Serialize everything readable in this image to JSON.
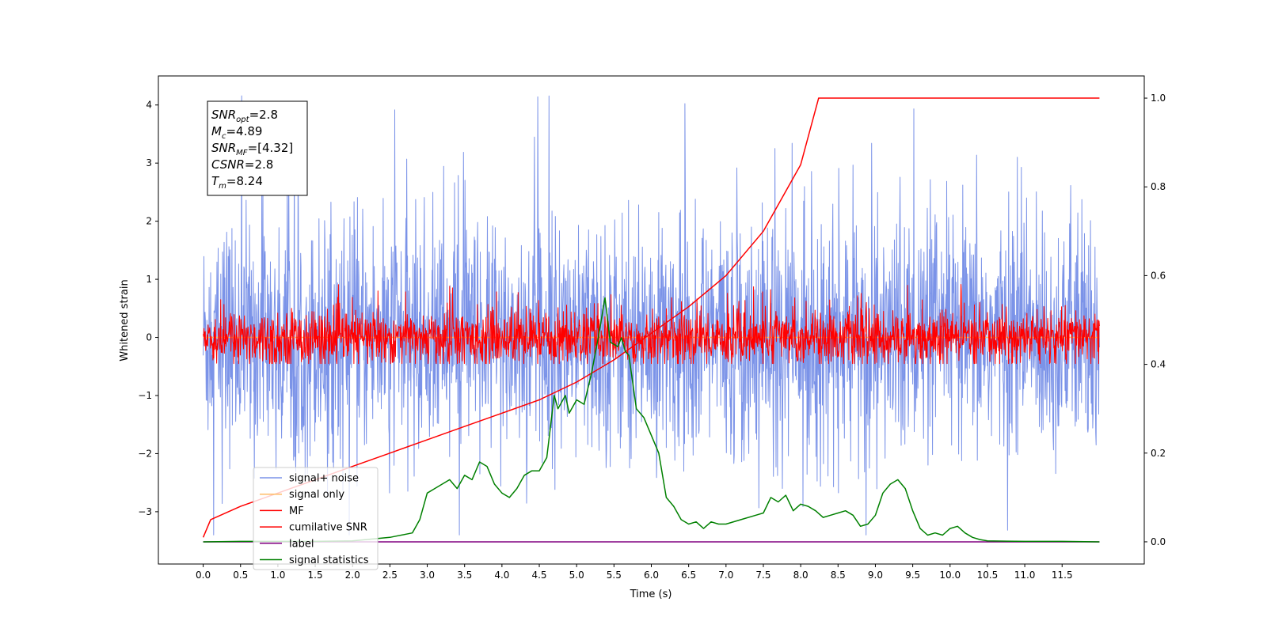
{
  "chart_data": {
    "type": "line",
    "xlabel": "Time (s)",
    "ylabel_left": "Whitened strain",
    "ylabel_right": "",
    "xlim": [
      -0.6,
      12.6
    ],
    "ylim_left": [
      -3.9,
      4.5
    ],
    "ylim_right": [
      -0.05,
      1.05
    ],
    "x_ticks": [
      0.0,
      0.5,
      1.0,
      1.5,
      2.0,
      2.5,
      3.0,
      3.5,
      4.0,
      4.5,
      5.0,
      5.5,
      6.0,
      6.5,
      7.0,
      7.5,
      8.0,
      8.5,
      9.0,
      9.5,
      10.0,
      10.5,
      11.0,
      11.5
    ],
    "x_tick_labels": [
      "0.0",
      "0.5",
      "1.0",
      "1.5",
      "2.0",
      "2.5",
      "3.0",
      "3.5",
      "4.0",
      "4.5",
      "5.0",
      "5.5",
      "6.0",
      "6.5",
      "7.0",
      "7.5",
      "8.0",
      "8.5",
      "9.0",
      "9.5",
      "10.0",
      "10.5",
      "11.0",
      "11.5"
    ],
    "y_ticks_left": [
      -3,
      -2,
      -1,
      0,
      1,
      2,
      3,
      4
    ],
    "y_tick_labels_left": [
      "−3",
      "−2",
      "−1",
      "0",
      "1",
      "2",
      "3",
      "4"
    ],
    "y_ticks_right": [
      0.0,
      0.2,
      0.4,
      0.6,
      0.8,
      1.0
    ],
    "y_tick_labels_right": [
      "0.0",
      "0.2",
      "0.4",
      "0.6",
      "0.8",
      "1.0"
    ],
    "grid": false,
    "legend_position": "lower-left",
    "annotation": {
      "lines": [
        {
          "base": "SNR",
          "sub": "opt",
          "value": "=2.8"
        },
        {
          "base": "M",
          "sub": "c",
          "value": "=4.89"
        },
        {
          "base": "SNR",
          "sub": "MF",
          "value": "=[4.32]"
        },
        {
          "base": "CSNR",
          "sub": "",
          "value": "=2.8"
        },
        {
          "base": "T",
          "sub": "m",
          "value": "=8.24"
        }
      ]
    },
    "series": [
      {
        "name": "signal+ noise",
        "axis": "left",
        "kind": "noise",
        "color": "#7b93e8",
        "x_range": [
          0.0,
          12.0
        ],
        "center": 0.0,
        "typical_min": -2.0,
        "typical_max": 2.0,
        "min": -3.4,
        "max": 4.2
      },
      {
        "name": "signal only",
        "axis": "left",
        "kind": "flat",
        "color": "#ffbb66",
        "x": [
          0.0,
          12.0
        ],
        "y": [
          0.0,
          0.0
        ]
      },
      {
        "name": "MF",
        "axis": "left",
        "kind": "noise",
        "color": "#ff0000",
        "x_range": [
          0.0,
          12.0
        ],
        "center": 0.0,
        "typical_min": -0.4,
        "typical_max": 0.55,
        "min": -0.45,
        "max": 1.0
      },
      {
        "name": "cumilative SNR",
        "axis": "right",
        "color": "#ff0000",
        "x": [
          0.0,
          0.1,
          0.5,
          1.0,
          1.5,
          2.0,
          2.5,
          3.0,
          3.5,
          4.0,
          4.5,
          5.0,
          5.5,
          6.0,
          6.5,
          7.0,
          7.5,
          8.0,
          8.24,
          12.0
        ],
        "y": [
          0.01,
          0.05,
          0.08,
          0.11,
          0.14,
          0.17,
          0.2,
          0.23,
          0.26,
          0.29,
          0.32,
          0.36,
          0.41,
          0.47,
          0.53,
          0.6,
          0.7,
          0.85,
          1.0,
          1.0
        ]
      },
      {
        "name": "label",
        "axis": "right",
        "color": "#800080",
        "x": [
          0.0,
          12.0
        ],
        "y": [
          0.0,
          0.0
        ]
      },
      {
        "name": "signal statistics",
        "axis": "right",
        "color": "#008000",
        "x": [
          0.0,
          0.5,
          1.0,
          1.5,
          2.0,
          2.5,
          2.8,
          2.9,
          3.0,
          3.1,
          3.3,
          3.4,
          3.5,
          3.6,
          3.7,
          3.8,
          3.9,
          4.0,
          4.1,
          4.2,
          4.3,
          4.4,
          4.5,
          4.6,
          4.7,
          4.75,
          4.85,
          4.9,
          5.0,
          5.1,
          5.2,
          5.3,
          5.38,
          5.45,
          5.55,
          5.6,
          5.65,
          5.7,
          5.8,
          5.9,
          6.0,
          6.1,
          6.2,
          6.3,
          6.4,
          6.5,
          6.6,
          6.7,
          6.8,
          6.9,
          7.0,
          7.2,
          7.4,
          7.5,
          7.6,
          7.7,
          7.8,
          7.9,
          8.0,
          8.1,
          8.2,
          8.3,
          8.4,
          8.5,
          8.6,
          8.7,
          8.8,
          8.9,
          9.0,
          9.1,
          9.2,
          9.3,
          9.35,
          9.4,
          9.5,
          9.6,
          9.7,
          9.8,
          9.9,
          10.0,
          10.1,
          10.2,
          10.3,
          10.4,
          10.5,
          11.0,
          11.5,
          12.0
        ],
        "y": [
          0.0,
          0.001,
          0.001,
          0.001,
          0.002,
          0.01,
          0.02,
          0.05,
          0.11,
          0.12,
          0.14,
          0.12,
          0.15,
          0.14,
          0.18,
          0.17,
          0.13,
          0.11,
          0.1,
          0.12,
          0.15,
          0.16,
          0.16,
          0.19,
          0.33,
          0.3,
          0.33,
          0.29,
          0.32,
          0.31,
          0.38,
          0.47,
          0.55,
          0.45,
          0.44,
          0.46,
          0.43,
          0.42,
          0.3,
          0.28,
          0.24,
          0.2,
          0.1,
          0.08,
          0.05,
          0.04,
          0.045,
          0.03,
          0.045,
          0.04,
          0.04,
          0.05,
          0.06,
          0.065,
          0.1,
          0.09,
          0.105,
          0.07,
          0.085,
          0.08,
          0.07,
          0.055,
          0.06,
          0.065,
          0.07,
          0.06,
          0.035,
          0.04,
          0.06,
          0.11,
          0.13,
          0.14,
          0.13,
          0.12,
          0.07,
          0.03,
          0.015,
          0.02,
          0.015,
          0.03,
          0.035,
          0.02,
          0.01,
          0.005,
          0.002,
          0.001,
          0.001,
          0.0
        ]
      }
    ]
  }
}
